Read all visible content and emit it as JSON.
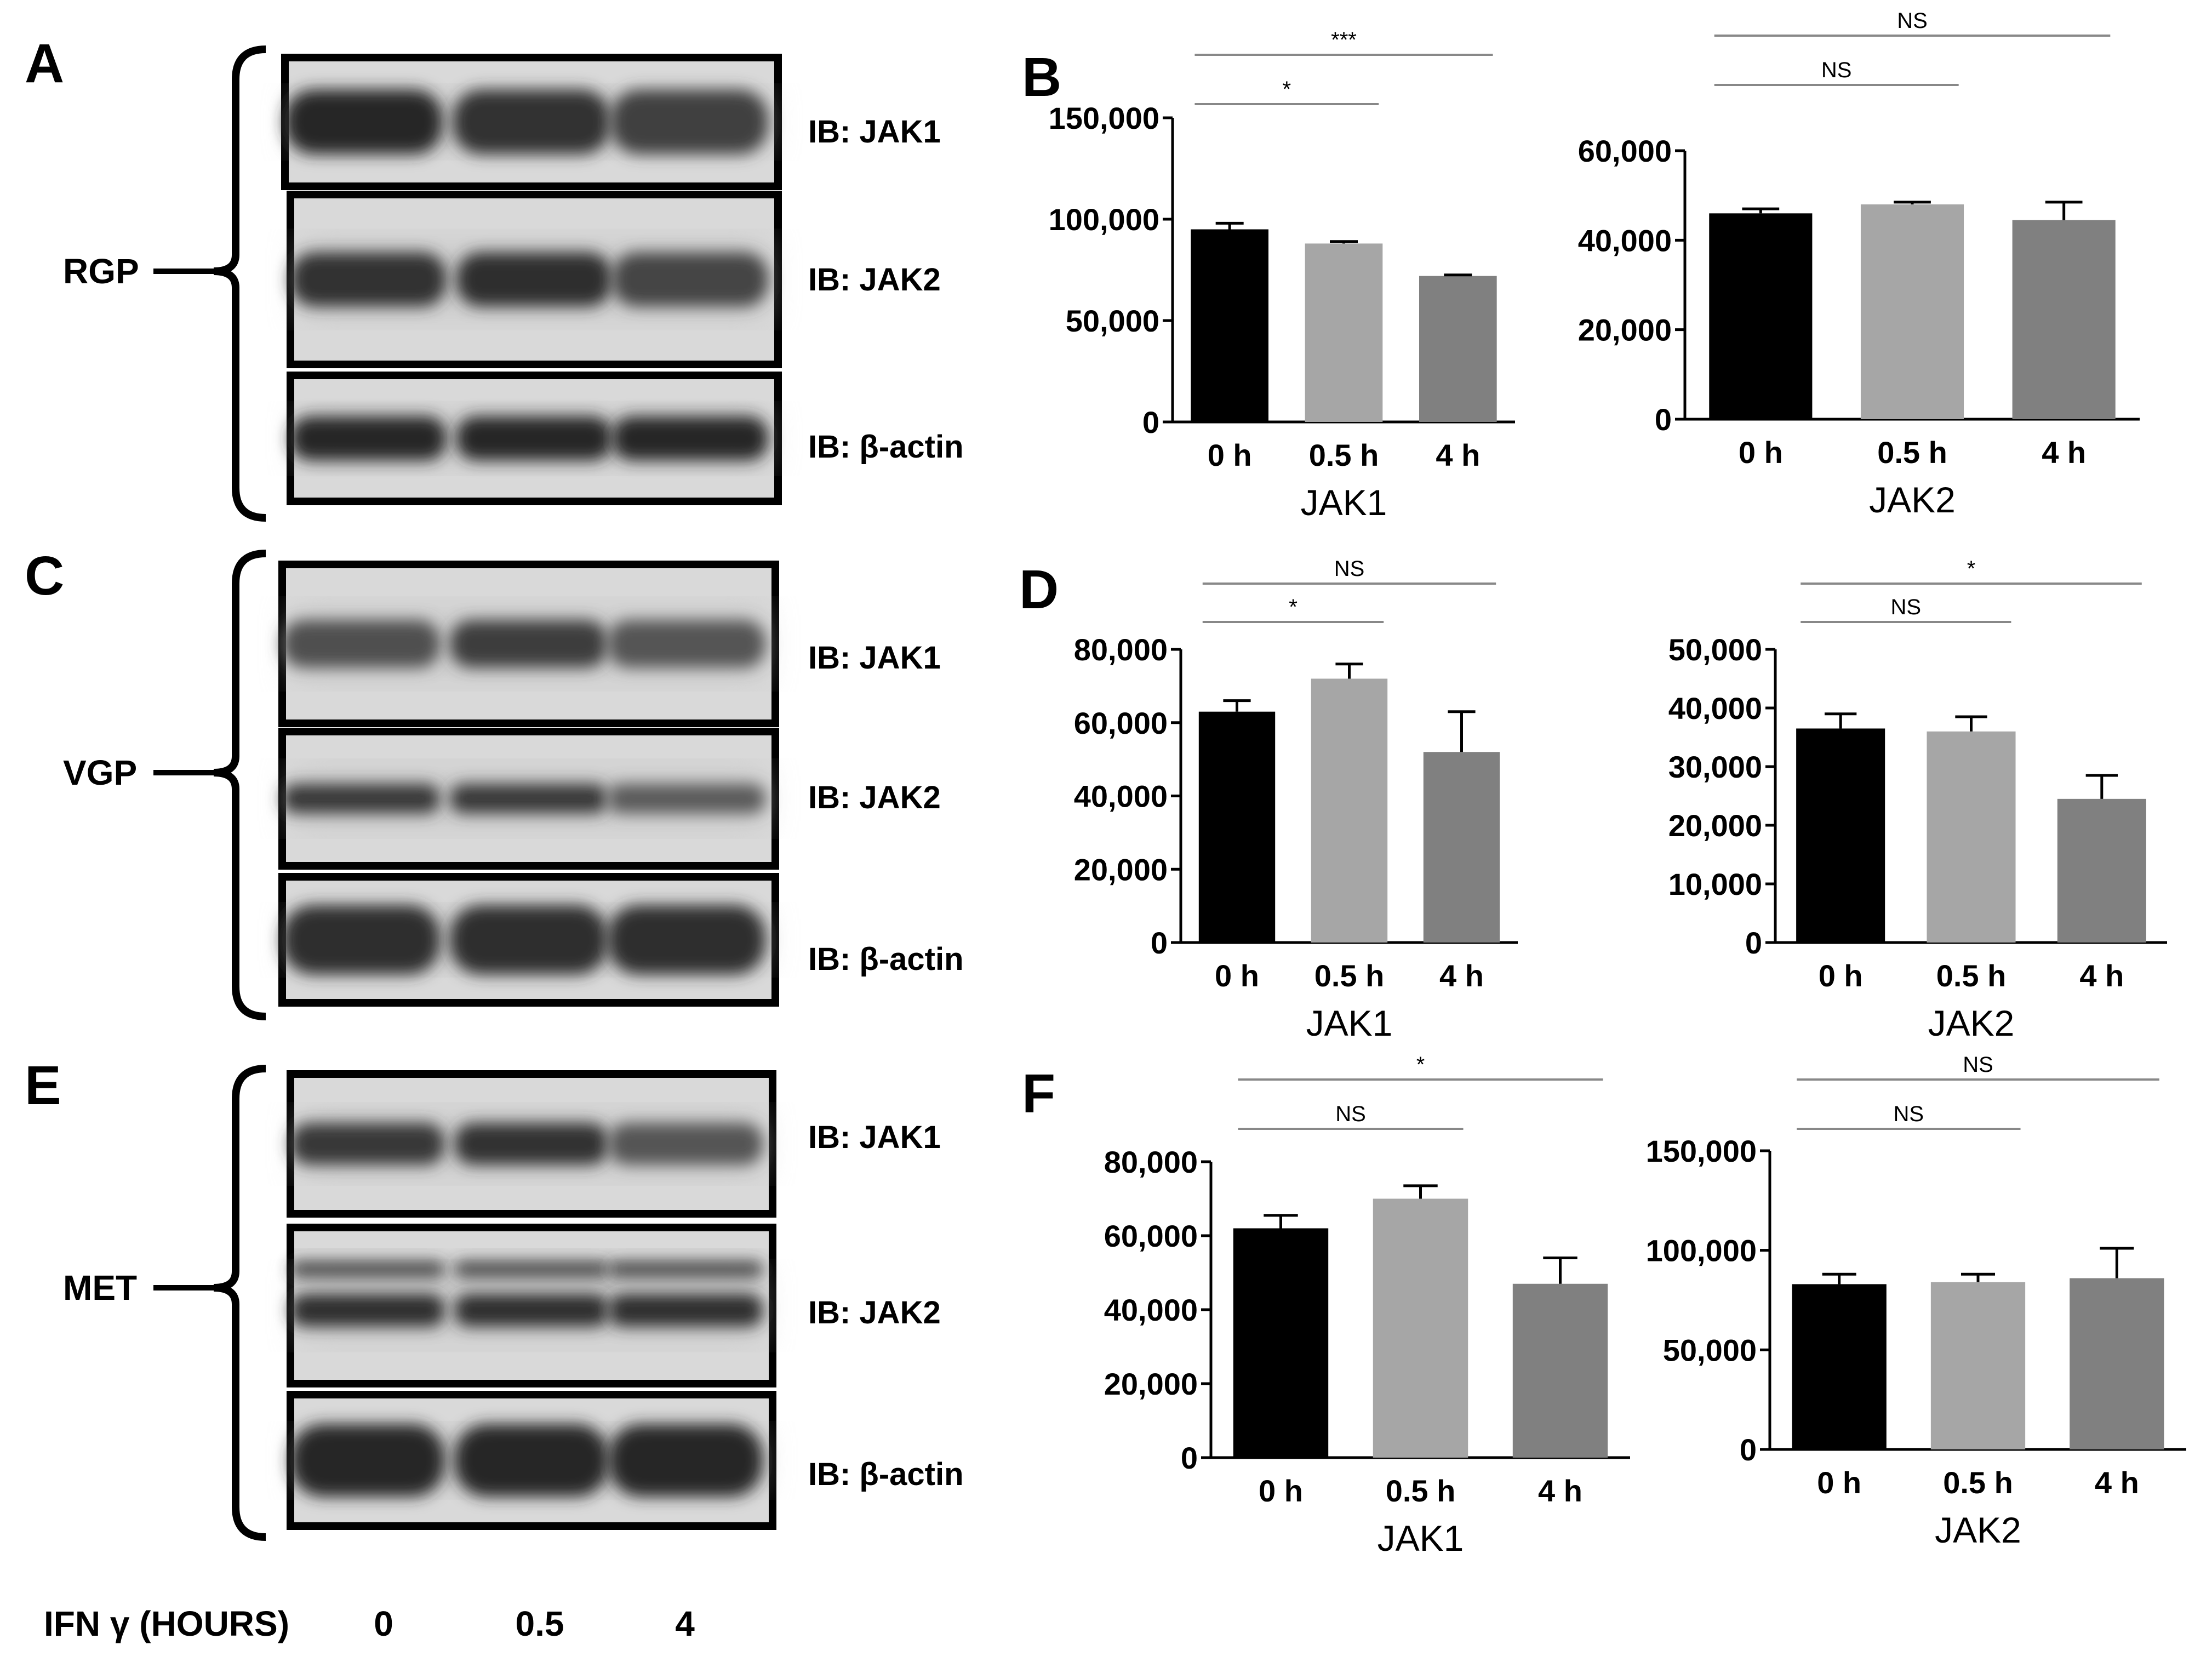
{
  "blots": [
    {
      "letter": "A",
      "group": "RGP",
      "rows": [
        {
          "label": "IB: JAK1",
          "bands": [
            1.0,
            0.92,
            0.78
          ],
          "thickness": 0.5,
          "doublet": false
        },
        {
          "label": "IB: JAK2",
          "bands": [
            0.9,
            0.95,
            0.75
          ],
          "thickness": 0.32,
          "doublet": false
        },
        {
          "label": "IB: β-actin",
          "bands": [
            1.0,
            1.0,
            1.0
          ],
          "thickness": 0.35,
          "doublet": false
        }
      ]
    },
    {
      "letter": "C",
      "group": "VGP",
      "rows": [
        {
          "label": "IB: JAK1",
          "bands": [
            0.65,
            0.8,
            0.6
          ],
          "thickness": 0.3,
          "doublet": false
        },
        {
          "label": "IB: JAK2",
          "bands": [
            0.85,
            0.85,
            0.55
          ],
          "thickness": 0.22,
          "doublet": false
        },
        {
          "label": "IB: β-actin",
          "bands": [
            0.95,
            0.95,
            0.95
          ],
          "thickness": 0.55,
          "doublet": false
        }
      ]
    },
    {
      "letter": "E",
      "group": "MET",
      "rows": [
        {
          "label": "IB: JAK1",
          "bands": [
            0.85,
            0.9,
            0.6
          ],
          "thickness": 0.3,
          "doublet": false
        },
        {
          "label": "IB: JAK2",
          "bands": [
            0.95,
            0.95,
            0.95
          ],
          "thickness": 0.3,
          "doublet": true
        },
        {
          "label": "IB: β-actin",
          "bands": [
            1.0,
            1.0,
            1.0
          ],
          "thickness": 0.55,
          "doublet": false
        }
      ]
    }
  ],
  "lanes": {
    "label": "IFN γ (HOURS)",
    "values": [
      "0",
      "0.5",
      "4"
    ]
  },
  "chart_data": [
    {
      "panel": "B",
      "type": "bar",
      "categories": [
        "0 h",
        "0.5 h",
        "4 h"
      ],
      "values": [
        95000,
        88000,
        72000
      ],
      "errors": [
        3000,
        1000,
        500
      ],
      "xlabel": "JAK1",
      "ylim": [
        0,
        150000
      ],
      "yticks": [
        "0",
        "50,000",
        "100,000",
        "150,000"
      ],
      "ytick_values": [
        0,
        50000,
        100000,
        150000
      ],
      "colors": [
        "#000000",
        "#a6a6a6",
        "#808080"
      ],
      "significance": [
        {
          "from": 0,
          "to": 1,
          "label": "*"
        },
        {
          "from": 0,
          "to": 2,
          "label": "***"
        }
      ]
    },
    {
      "panel": "",
      "type": "bar",
      "categories": [
        "0 h",
        "0.5 h",
        "4 h"
      ],
      "values": [
        46000,
        48000,
        44500
      ],
      "errors": [
        1000,
        500,
        4000
      ],
      "xlabel": "JAK2",
      "ylim": [
        0,
        60000
      ],
      "yticks": [
        "0",
        "20,000",
        "40,000",
        "60,000"
      ],
      "ytick_values": [
        0,
        20000,
        40000,
        60000
      ],
      "colors": [
        "#000000",
        "#a6a6a6",
        "#808080"
      ],
      "significance": [
        {
          "from": 0,
          "to": 1,
          "label": "NS"
        },
        {
          "from": 0,
          "to": 2,
          "label": "NS"
        }
      ]
    },
    {
      "panel": "D",
      "type": "bar",
      "categories": [
        "0 h",
        "0.5 h",
        "4 h"
      ],
      "values": [
        63000,
        72000,
        52000
      ],
      "errors": [
        3000,
        4000,
        11000
      ],
      "xlabel": "JAK1",
      "ylim": [
        0,
        80000
      ],
      "yticks": [
        "0",
        "20,000",
        "40,000",
        "60,000",
        "80,000"
      ],
      "ytick_values": [
        0,
        20000,
        40000,
        60000,
        80000
      ],
      "colors": [
        "#000000",
        "#a6a6a6",
        "#808080"
      ],
      "significance": [
        {
          "from": 0,
          "to": 1,
          "label": "*"
        },
        {
          "from": 0,
          "to": 2,
          "label": "NS"
        }
      ]
    },
    {
      "panel": "",
      "type": "bar",
      "categories": [
        "0 h",
        "0.5 h",
        "4 h"
      ],
      "values": [
        36500,
        36000,
        24500
      ],
      "errors": [
        2500,
        2500,
        4000
      ],
      "xlabel": "JAK2",
      "ylim": [
        0,
        50000
      ],
      "yticks": [
        "0",
        "10,000",
        "20,000",
        "30,000",
        "40,000",
        "50,000"
      ],
      "ytick_values": [
        0,
        10000,
        20000,
        30000,
        40000,
        50000
      ],
      "colors": [
        "#000000",
        "#a6a6a6",
        "#808080"
      ],
      "significance": [
        {
          "from": 0,
          "to": 1,
          "label": "NS"
        },
        {
          "from": 0,
          "to": 2,
          "label": "*"
        }
      ]
    },
    {
      "panel": "F",
      "type": "bar",
      "categories": [
        "0 h",
        "0.5 h",
        "4 h"
      ],
      "values": [
        62000,
        70000,
        47000
      ],
      "errors": [
        3500,
        3500,
        7000
      ],
      "xlabel": "JAK1",
      "ylim": [
        0,
        80000
      ],
      "yticks": [
        "0",
        "20,000",
        "40,000",
        "60,000",
        "80,000"
      ],
      "ytick_values": [
        0,
        20000,
        40000,
        60000,
        80000
      ],
      "colors": [
        "#000000",
        "#a6a6a6",
        "#808080"
      ],
      "significance": [
        {
          "from": 0,
          "to": 1,
          "label": "NS"
        },
        {
          "from": 0,
          "to": 2,
          "label": "*"
        }
      ]
    },
    {
      "panel": "",
      "type": "bar",
      "categories": [
        "0 h",
        "0.5 h",
        "4 h"
      ],
      "values": [
        83000,
        84000,
        86000
      ],
      "errors": [
        5000,
        4000,
        15000
      ],
      "xlabel": "JAK2",
      "ylim": [
        0,
        150000
      ],
      "yticks": [
        "0",
        "50,000",
        "100,000",
        "150,000"
      ],
      "ytick_values": [
        0,
        50000,
        100000,
        150000
      ],
      "colors": [
        "#000000",
        "#a6a6a6",
        "#808080"
      ],
      "significance": [
        {
          "from": 0,
          "to": 1,
          "label": "NS"
        },
        {
          "from": 0,
          "to": 2,
          "label": "NS"
        }
      ]
    }
  ]
}
